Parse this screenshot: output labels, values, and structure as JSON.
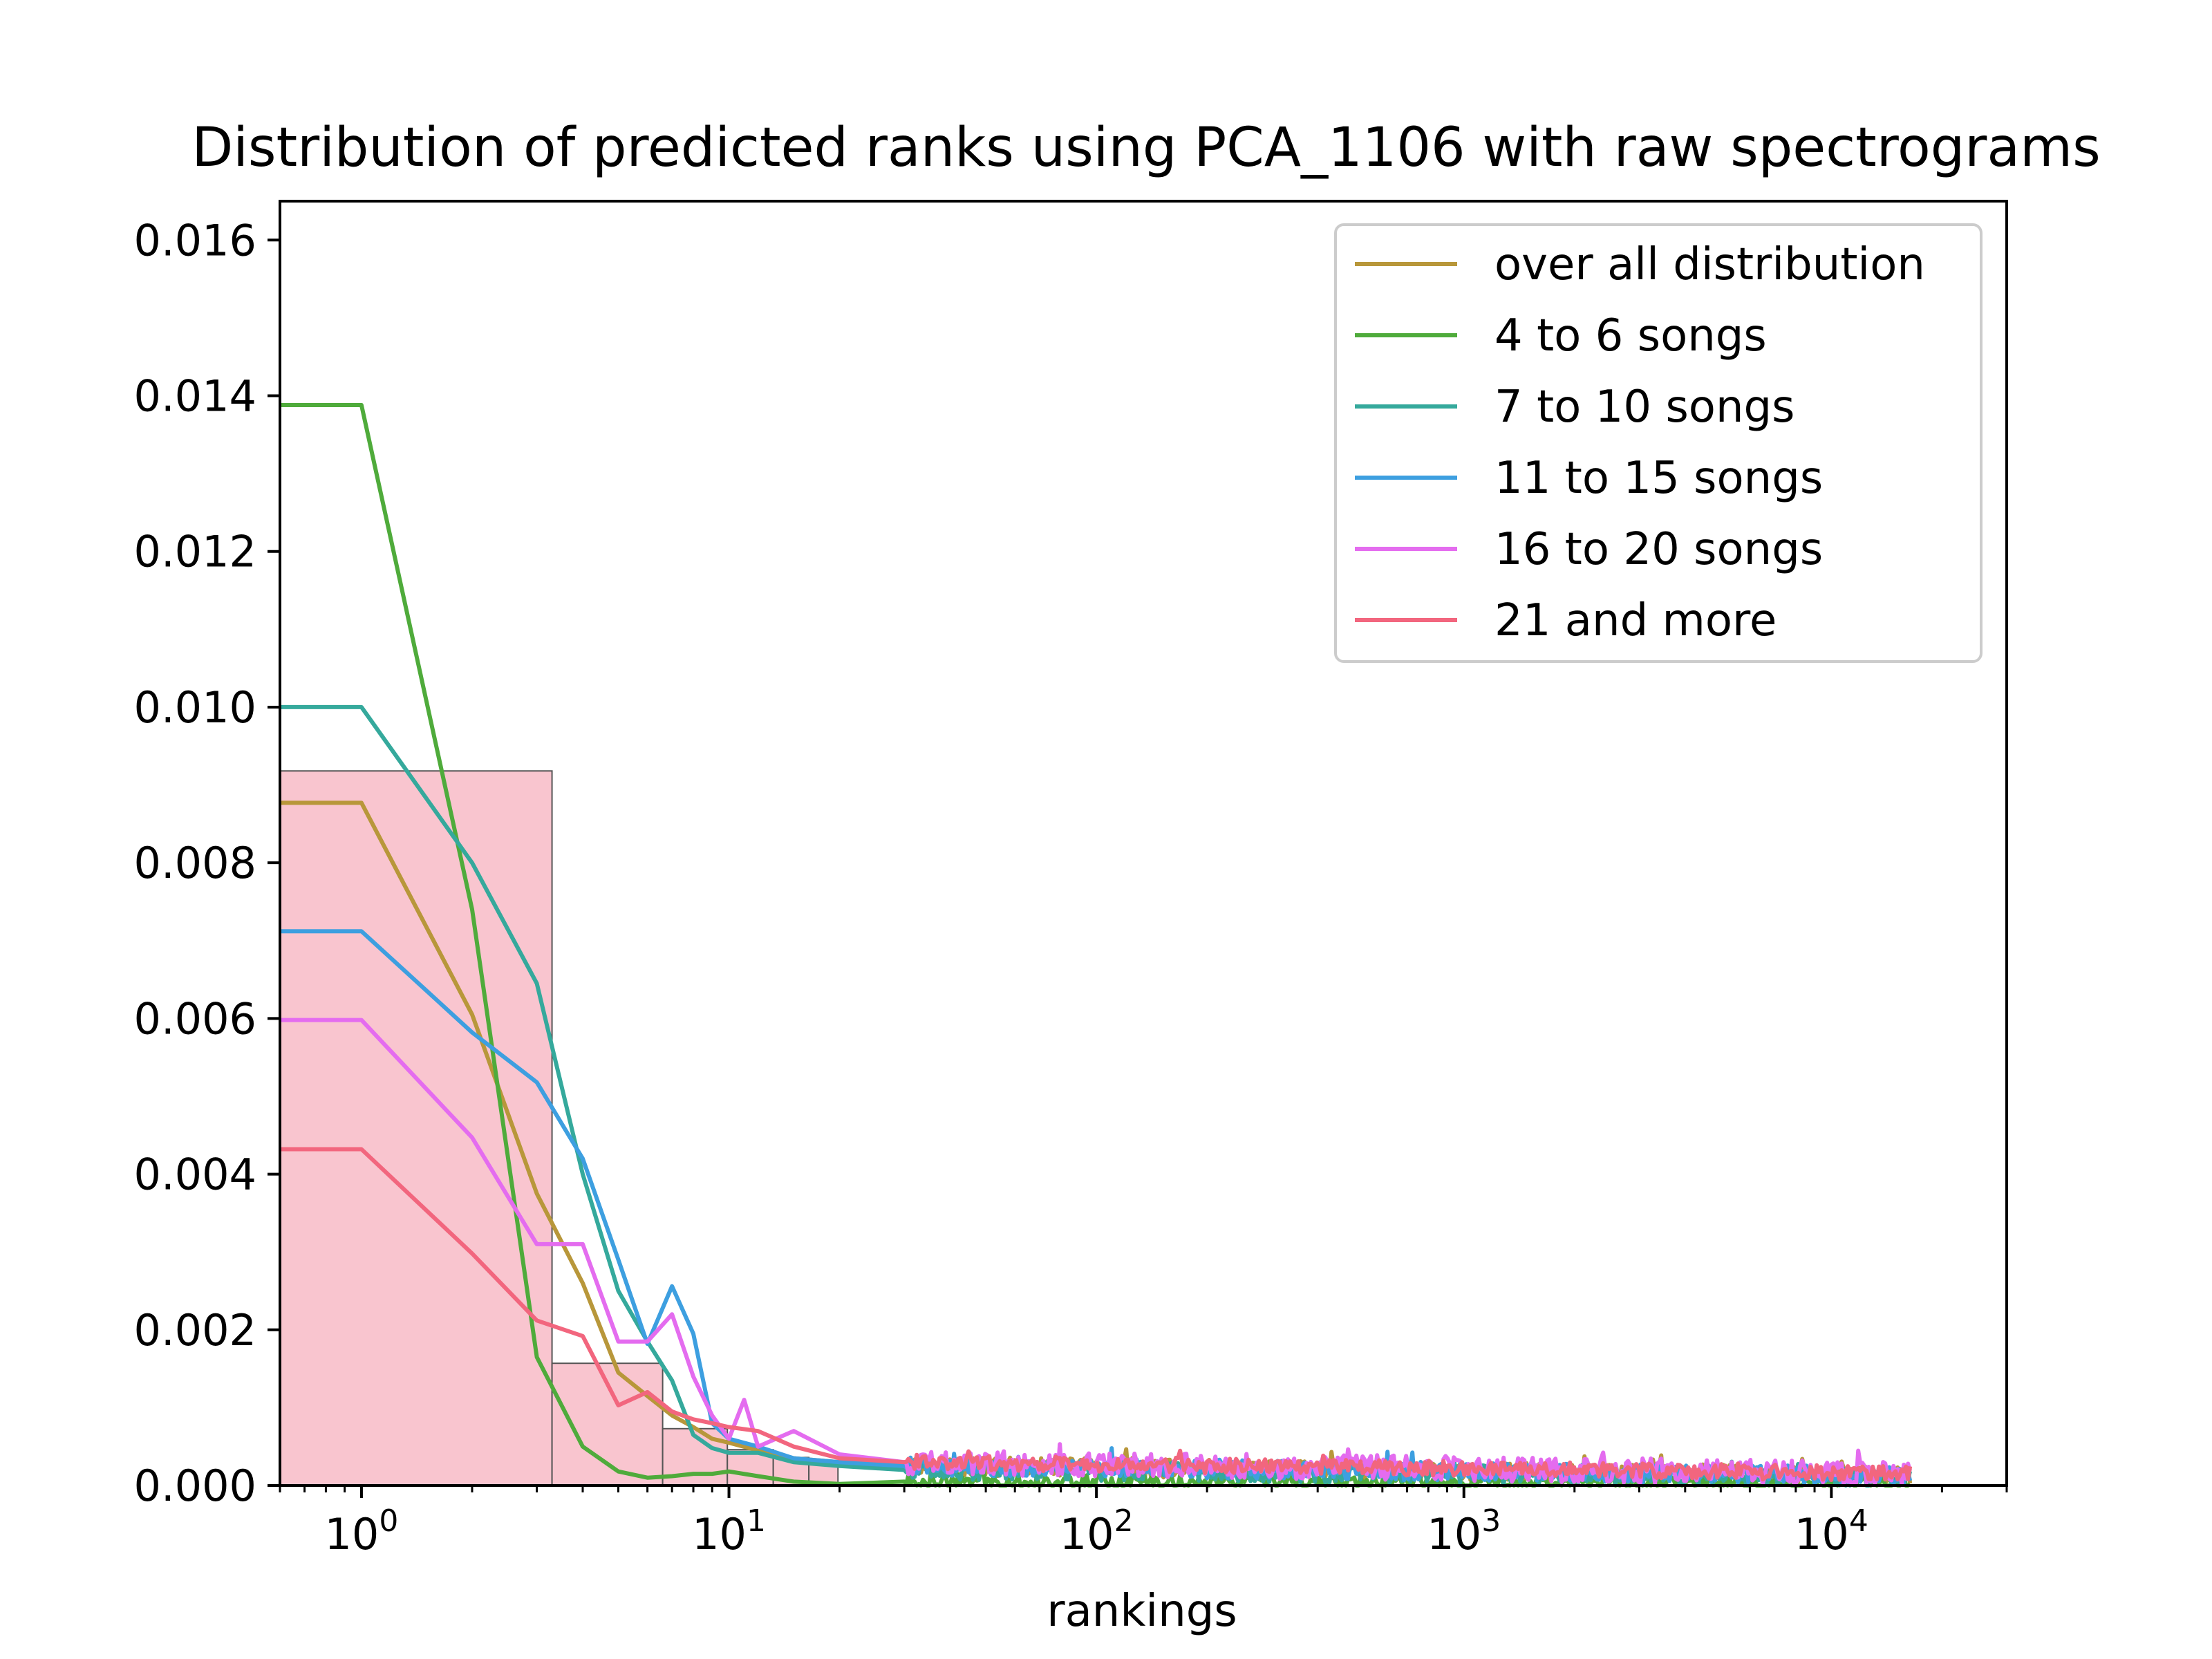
{
  "chart_data": {
    "type": "line",
    "title": "Distribution of predicted ranks using PCA_1106 with raw spectrograms",
    "xlabel": "rankings",
    "ylabel": "",
    "xscale": "log",
    "xlim": [
      0.6,
      30000
    ],
    "ylim": [
      0,
      0.0165
    ],
    "yticks": [
      "0.000",
      "0.002",
      "0.004",
      "0.006",
      "0.008",
      "0.010",
      "0.012",
      "0.014",
      "0.016"
    ],
    "xticks": [
      {
        "base": "10",
        "exp": "0",
        "value": 1
      },
      {
        "base": "10",
        "exp": "1",
        "value": 10
      },
      {
        "base": "10",
        "exp": "2",
        "value": 100
      },
      {
        "base": "10",
        "exp": "3",
        "value": 1000
      },
      {
        "base": "10",
        "exp": "4",
        "value": 10000
      }
    ],
    "legend_position": "top-right",
    "histogram": {
      "color": "#f9c5cf",
      "bins": [
        {
          "x0": 0.6,
          "x1": 3.3,
          "value": 0.00918
        },
        {
          "x0": 3.3,
          "x1": 6.6,
          "value": 0.00157
        },
        {
          "x0": 6.6,
          "x1": 9.9,
          "value": 0.00073
        },
        {
          "x0": 9.9,
          "x1": 13.2,
          "value": 0.00046
        },
        {
          "x0": 13.2,
          "x1": 16.5,
          "value": 0.00036
        },
        {
          "x0": 16.5,
          "x1": 19.8,
          "value": 0.0003
        }
      ]
    },
    "series": [
      {
        "name": "over all distribution",
        "color": "#b8973a",
        "x": [
          0.6,
          1,
          2,
          3,
          4,
          5,
          6,
          7,
          8,
          9,
          10,
          12,
          15,
          20,
          30
        ],
        "y": [
          0.00877,
          0.00877,
          0.00605,
          0.00375,
          0.0026,
          0.00145,
          0.00115,
          0.0009,
          0.00075,
          0.0006,
          0.00055,
          0.00045,
          0.00035,
          0.0003,
          0.00025
        ],
        "noise_level": 0.00015
      },
      {
        "name": "4 to 6 songs",
        "color": "#4fab3b",
        "x": [
          0.6,
          1,
          2,
          3,
          4,
          5,
          6,
          7,
          8,
          9,
          10,
          12,
          15,
          20,
          30
        ],
        "y": [
          0.01388,
          0.01388,
          0.0074,
          0.00165,
          0.0005,
          0.00018,
          0.0001,
          0.00012,
          0.00015,
          0.00015,
          0.00018,
          0.00012,
          5e-05,
          2e-05,
          5e-05
        ],
        "noise_level": 0.00012
      },
      {
        "name": "7 to 10 songs",
        "color": "#35a99c",
        "x": [
          0.6,
          1,
          2,
          3,
          4,
          5,
          6,
          7,
          8,
          9,
          10,
          12,
          15,
          20,
          30
        ],
        "y": [
          0.01,
          0.01,
          0.008,
          0.00645,
          0.004,
          0.0025,
          0.00185,
          0.00135,
          0.00065,
          0.00048,
          0.00042,
          0.00042,
          0.0003,
          0.00025,
          0.0002
        ],
        "noise_level": 0.00015
      },
      {
        "name": "11 to 15 songs",
        "color": "#3d9fe0",
        "x": [
          0.6,
          1,
          2,
          3,
          4,
          5,
          6,
          7,
          8,
          9,
          10,
          12,
          15,
          20,
          30
        ],
        "y": [
          0.00712,
          0.00712,
          0.00582,
          0.00518,
          0.0042,
          0.0029,
          0.00182,
          0.00256,
          0.00195,
          0.0008,
          0.0006,
          0.0005,
          0.00035,
          0.0003,
          0.00025
        ],
        "noise_level": 0.00015
      },
      {
        "name": "16 to 20 songs",
        "color": "#e46cef",
        "x": [
          0.6,
          1,
          2,
          3,
          4,
          5,
          6,
          7,
          8,
          9,
          10,
          11,
          12,
          15,
          20,
          30
        ],
        "y": [
          0.00598,
          0.00598,
          0.00447,
          0.0031,
          0.0031,
          0.00185,
          0.00185,
          0.0022,
          0.0014,
          0.0009,
          0.0006,
          0.0011,
          0.0005,
          0.0007,
          0.0004,
          0.0003
        ],
        "noise_level": 0.0002
      },
      {
        "name": "21 and more",
        "color": "#f2667e",
        "x": [
          0.6,
          1,
          2,
          3,
          4,
          5,
          6,
          7,
          8,
          9,
          10,
          12,
          15,
          20,
          30
        ],
        "y": [
          0.00432,
          0.00432,
          0.00298,
          0.00212,
          0.00192,
          0.00103,
          0.0012,
          0.00095,
          0.00085,
          0.0008,
          0.00075,
          0.0007,
          0.0005,
          0.00035,
          0.0003
        ],
        "noise_level": 0.00012
      }
    ]
  }
}
